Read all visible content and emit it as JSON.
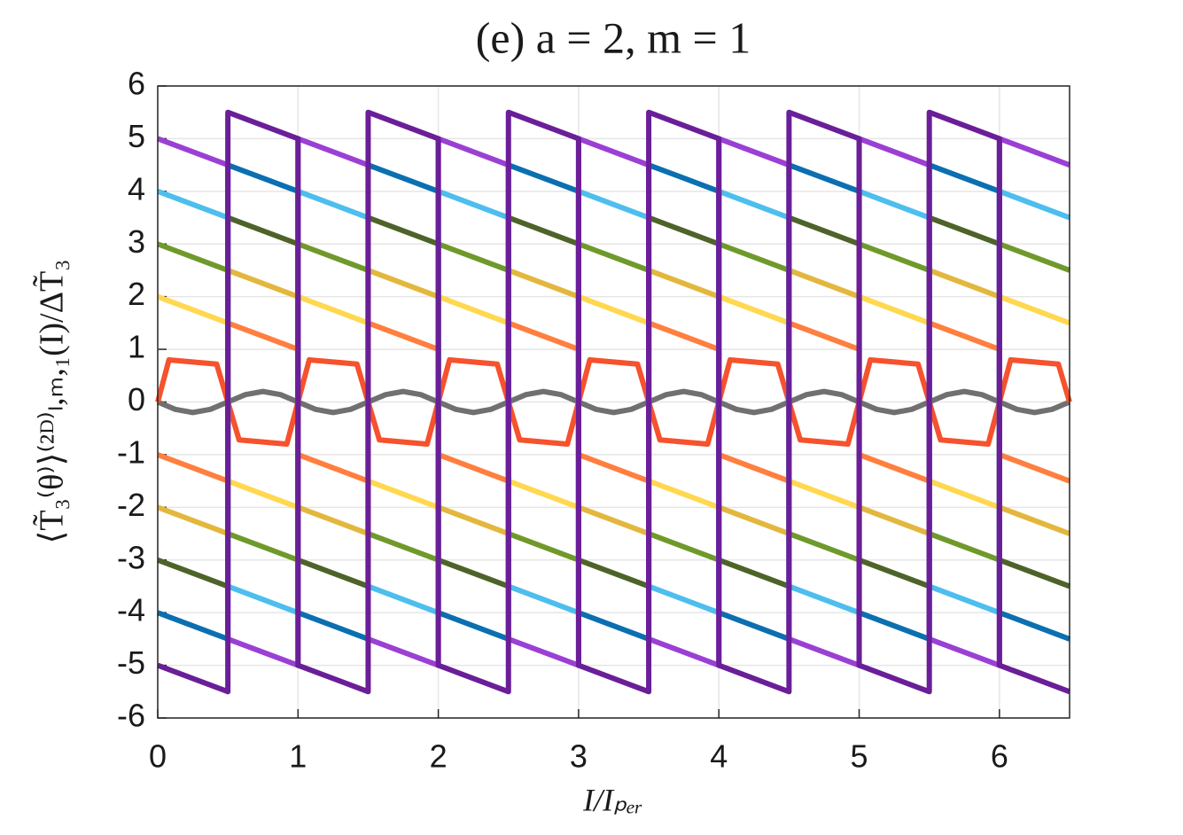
{
  "chart_data": {
    "type": "line",
    "title": "(e) a = 2, m = 1",
    "xlabel": "I/Iₚₑᵣ",
    "ylabel": "⟨T̃₃⁽θ⁾⟩⁽²ᴰ⁾ₗ,ₘ,₁(I)/ΔT̃₃",
    "xlim": [
      0,
      6.5
    ],
    "ylim": [
      -6,
      6
    ],
    "xticks": [
      0,
      1,
      2,
      3,
      4,
      5,
      6
    ],
    "yticks": [
      -6,
      -5,
      -4,
      -3,
      -2,
      -1,
      0,
      1,
      2,
      3,
      4,
      5,
      6
    ],
    "grid": true,
    "x": [
      0,
      0.5,
      0.5,
      1,
      1,
      1.5,
      1.5,
      2,
      2,
      2.5,
      2.5,
      3,
      3,
      3.5,
      3.5,
      4,
      4,
      4.5,
      4.5,
      5,
      5,
      5.5,
      5.5,
      6,
      6,
      6.5
    ],
    "series": [
      {
        "color": "#707070",
        "x": [
          0,
          0.125,
          0.25,
          0.375,
          0.5,
          0.625,
          0.75,
          0.875,
          1,
          1.125,
          1.25,
          1.375,
          1.5,
          1.625,
          1.75,
          1.875,
          2,
          2.125,
          2.25,
          2.375,
          2.5,
          2.625,
          2.75,
          2.875,
          3,
          3.125,
          3.25,
          3.375,
          3.5,
          3.625,
          3.75,
          3.875,
          4,
          4.125,
          4.25,
          4.375,
          4.5,
          4.625,
          4.75,
          4.875,
          5,
          5.125,
          5.25,
          5.375,
          5.5,
          5.625,
          5.75,
          5.875,
          6,
          6.125,
          6.25,
          6.375,
          6.5
        ],
        "values": [
          0,
          -0.14,
          -0.2,
          -0.14,
          0,
          0.14,
          0.2,
          0.14,
          0,
          -0.14,
          -0.2,
          -0.14,
          0,
          0.14,
          0.2,
          0.14,
          0,
          -0.14,
          -0.2,
          -0.14,
          0,
          0.14,
          0.2,
          0.14,
          0,
          -0.14,
          -0.2,
          -0.14,
          0,
          0.14,
          0.2,
          0.14,
          0,
          -0.14,
          -0.2,
          -0.14,
          0,
          0.14,
          0.2,
          0.14,
          0,
          -0.14,
          -0.2,
          -0.14,
          0,
          0.14,
          0.2,
          0.14,
          0,
          -0.14,
          -0.2,
          -0.14,
          0
        ]
      },
      {
        "color": "#f5522d",
        "x": [
          0,
          0.08,
          0.42,
          0.5,
          0.58,
          0.92,
          1,
          1.08,
          1.42,
          1.5,
          1.58,
          1.92,
          2,
          2.08,
          2.42,
          2.5,
          2.58,
          2.92,
          3,
          3.08,
          3.42,
          3.5,
          3.58,
          3.92,
          4,
          4.08,
          4.42,
          4.5,
          4.58,
          4.92,
          5,
          5.08,
          5.42,
          5.5,
          5.58,
          5.92,
          6,
          6.08,
          6.42,
          6.5
        ],
        "values": [
          0,
          0.8,
          0.72,
          0,
          -0.72,
          -0.8,
          0,
          0.8,
          0.72,
          0,
          -0.72,
          -0.8,
          0,
          0.8,
          0.72,
          0,
          -0.72,
          -0.8,
          0,
          0.8,
          0.72,
          0,
          -0.72,
          -0.8,
          0,
          0.8,
          0.72,
          0,
          -0.72,
          -0.8,
          0,
          0.8,
          0.72,
          0,
          -0.72,
          -0.8,
          0,
          0.8,
          0.72,
          0
        ]
      },
      {
        "color": "#ff7f3f",
        "values": [
          -1,
          -1.5,
          1.5,
          1,
          -1,
          -1.5,
          1.5,
          1,
          -1,
          -1.5,
          1.5,
          1,
          -1,
          -1.5,
          1.5,
          1,
          -1,
          -1.5,
          1.5,
          1,
          -1,
          -1.5,
          1.5,
          1,
          -1,
          -1.5
        ]
      },
      {
        "color": "#ffd850",
        "values": [
          2,
          1.5,
          -1.5,
          -2,
          2,
          1.5,
          -1.5,
          -2,
          2,
          1.5,
          -1.5,
          -2,
          2,
          1.5,
          -1.5,
          -2,
          2,
          1.5,
          -1.5,
          -2,
          2,
          1.5,
          -1.5,
          -2,
          2,
          1.5
        ]
      },
      {
        "color": "#e3b73e",
        "values": [
          -2,
          -2.5,
          2.5,
          2,
          -2,
          -2.5,
          2.5,
          2,
          -2,
          -2.5,
          2.5,
          2,
          -2,
          -2.5,
          2.5,
          2,
          -2,
          -2.5,
          2.5,
          2,
          -2,
          -2.5,
          2.5,
          2,
          -2,
          -2.5
        ]
      },
      {
        "color": "#6f9a2b",
        "values": [
          3,
          2.5,
          -2.5,
          -3,
          3,
          2.5,
          -2.5,
          -3,
          3,
          2.5,
          -2.5,
          -3,
          3,
          2.5,
          -2.5,
          -3,
          3,
          2.5,
          -2.5,
          -3,
          3,
          2.5,
          -2.5,
          -3,
          3,
          2.5
        ]
      },
      {
        "color": "#4e6329",
        "values": [
          -3,
          -3.5,
          3.5,
          3,
          -3,
          -3.5,
          3.5,
          3,
          -3,
          -3.5,
          3.5,
          3,
          -3,
          -3.5,
          3.5,
          3,
          -3,
          -3.5,
          3.5,
          3,
          -3,
          -3.5,
          3.5,
          3,
          -3,
          -3.5
        ]
      },
      {
        "color": "#4dbeee",
        "values": [
          4,
          3.5,
          -3.5,
          -4,
          4,
          3.5,
          -3.5,
          -4,
          4,
          3.5,
          -3.5,
          -4,
          4,
          3.5,
          -3.5,
          -4,
          4,
          3.5,
          -3.5,
          -4,
          4,
          3.5,
          -3.5,
          -4,
          4,
          3.5
        ]
      },
      {
        "color": "#0b6fb0",
        "values": [
          -4,
          -4.5,
          4.5,
          4,
          -4,
          -4.5,
          4.5,
          4,
          -4,
          -4.5,
          4.5,
          4,
          -4,
          -4.5,
          4.5,
          4,
          -4,
          -4.5,
          4.5,
          4,
          -4,
          -4.5,
          4.5,
          4,
          -4,
          -4.5
        ]
      },
      {
        "color": "#9b40d4",
        "values": [
          5,
          4.5,
          -4.5,
          -5,
          5,
          4.5,
          -4.5,
          -5,
          5,
          4.5,
          -4.5,
          -5,
          5,
          4.5,
          -4.5,
          -5,
          5,
          4.5,
          -4.5,
          -5,
          5,
          4.5,
          -4.5,
          -5,
          5,
          4.5
        ]
      },
      {
        "color": "#6a1e98",
        "values": [
          -5,
          -5.5,
          5.5,
          5,
          -5,
          -5.5,
          5.5,
          5,
          -5,
          -5.5,
          5.5,
          5,
          -5,
          -5.5,
          5.5,
          5,
          -5,
          -5.5,
          5.5,
          5,
          -5,
          -5.5,
          5.5,
          5,
          -5,
          -5.5
        ]
      }
    ]
  }
}
